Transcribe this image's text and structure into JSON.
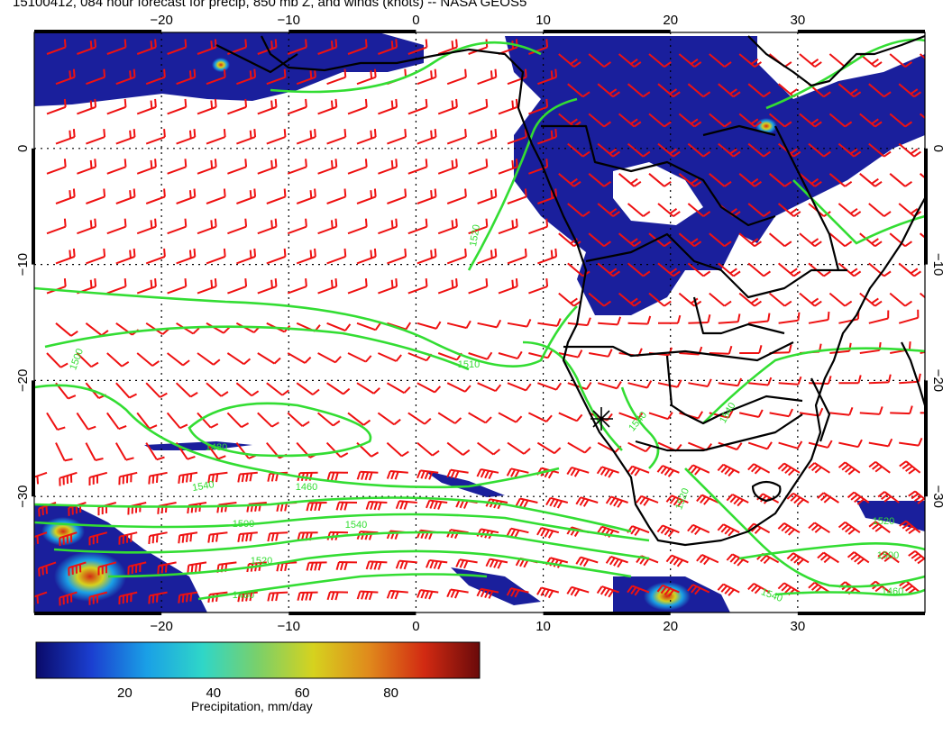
{
  "title": "15100412, 084 hour forecast for precip, 850 mb Z, and winds (knots) -- NASA GEOS5",
  "colors": {
    "precip_fill": "#1a1f9c",
    "contour": "#33dd33",
    "wind_barb": "#ee1111",
    "coast": "#000000",
    "grid": "#000000"
  },
  "map": {
    "lon_range": [
      -30,
      40
    ],
    "lat_range": [
      -40,
      10
    ],
    "lon_ticks": [
      "−20",
      "−10",
      "0",
      "10",
      "20",
      "30"
    ],
    "lat_ticks": [
      "0",
      "−10",
      "−20",
      "−30"
    ],
    "contour_labels": [
      "1500",
      "1510",
      "1520",
      "1540",
      "1480",
      "1460",
      "1500",
      "1540",
      "1520",
      "1480",
      "1540",
      "1540",
      "1520",
      "1500",
      "1460",
      "1540",
      "1520"
    ]
  },
  "colorbar": {
    "label": "Precipitation, mm/day",
    "ticks": [
      "20",
      "40",
      "60",
      "80"
    ],
    "range": [
      0,
      100
    ],
    "stops": [
      "#0a0a6a",
      "#1b3fd0",
      "#1aa0e6",
      "#2fd6c8",
      "#7ad06a",
      "#d6d21e",
      "#e08a1c",
      "#d22a12",
      "#6a0a0a"
    ]
  }
}
